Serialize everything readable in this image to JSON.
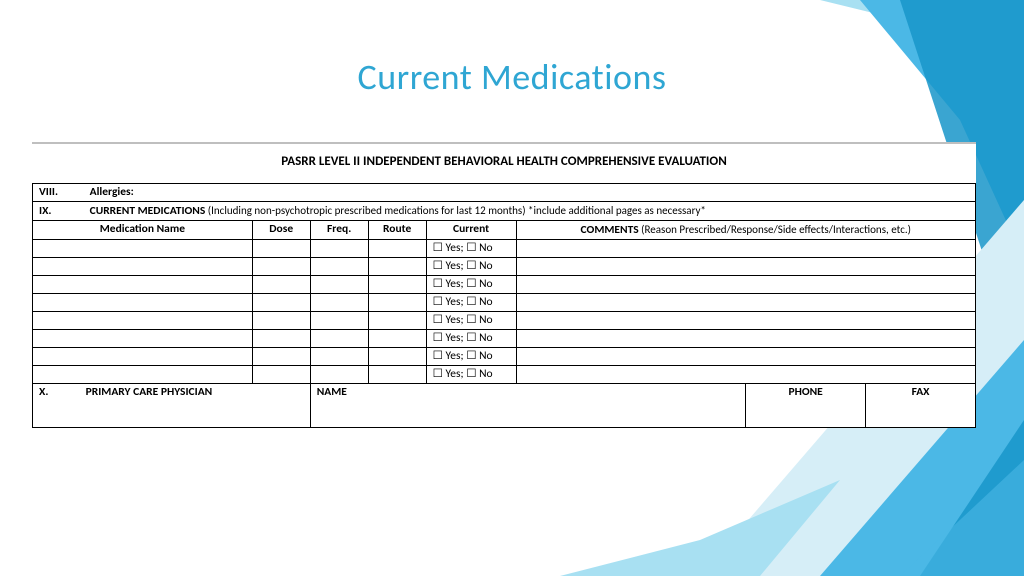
{
  "slide": {
    "title": "Current Medications",
    "title_color": "#2fa6d3",
    "title_fontsize": 36
  },
  "form": {
    "header_title": "PASRR LEVEL II INDEPENDENT BEHAVIORAL HEALTH COMPREHENSIVE EVALUATION",
    "section_viii": {
      "num": "VIII.",
      "label": "Allergies:"
    },
    "section_ix": {
      "num": "IX.",
      "label": "CURRENT MEDICATIONS",
      "note": " (Including non-psychotropic prescribed medications for last 12 months) *include additional pages as necessary*"
    },
    "columns": {
      "med_name": "Medication Name",
      "dose": "Dose",
      "freq": "Freq.",
      "route": "Route",
      "current": "Current",
      "comments_label": "COMMENTS",
      "comments_note": " (Reason Prescribed/Response/Side effects/Interactions, etc.)"
    },
    "yes_no": "☐ Yes; ☐ No",
    "row_count": 8,
    "section_x": {
      "num": "X.",
      "label": "PRIMARY CARE PHYSICIAN",
      "name_label": "NAME",
      "phone_label": "PHONE",
      "fax_label": "FAX"
    }
  },
  "background_shapes": {
    "colors": {
      "light": "#a8e0f2",
      "mid": "#4bb8e6",
      "dark": "#1795c9",
      "faint": "#d6eef7"
    }
  }
}
